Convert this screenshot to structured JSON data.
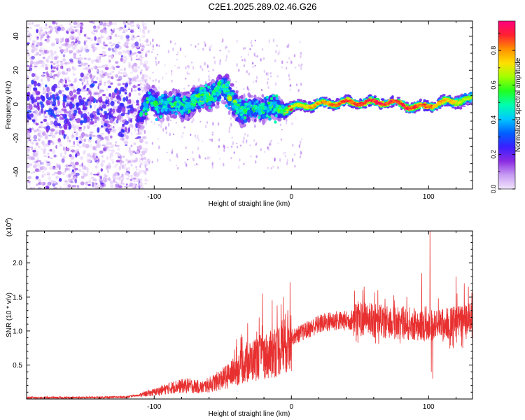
{
  "title": "C2E1.2025.289.02.46.G26",
  "colors": {
    "snr_line": "#e83030",
    "frame": "#000000",
    "spectro_low": "#e6d4f7",
    "spectro_mid": "#7b2ff0"
  },
  "chart_data": [
    {
      "type": "heatmap",
      "name": "spectrogram",
      "xlabel": "Height of straight line (km)",
      "ylabel": "Frequency (Hz)",
      "xlim": [
        -193,
        132
      ],
      "ylim": [
        -50,
        49
      ],
      "x_ticks": [
        -100,
        0,
        100
      ],
      "x_tick_labels": [
        "-100",
        "0",
        "100"
      ],
      "y_ticks": [
        -40,
        -20,
        0,
        20,
        40
      ],
      "y_tick_labels": [
        "-40",
        "-20",
        "0",
        "20",
        "40"
      ],
      "colorbar": {
        "label": "Normalized spectral amplitude",
        "range": [
          0.0,
          0.97
        ],
        "ticks": [
          0.0,
          0.2,
          0.4,
          0.6,
          0.8
        ],
        "tick_labels": [
          "0.0",
          "0.2",
          "0.4",
          "0.6",
          "0.8"
        ],
        "colors": [
          "#f2e4fc",
          "#c79cf3",
          "#8a2be2",
          "#3a1fff",
          "#0060ff",
          "#00c8ff",
          "#00ffb0",
          "#20ff20",
          "#a0ff00",
          "#ffe000",
          "#ff9000",
          "#ff2030",
          "#ff0080"
        ]
      },
      "features": {
        "noise_region_x": [
          -193,
          -112
        ],
        "band_x": [
          -112,
          132
        ],
        "band_center_freq": [
          [
            -112,
            -8
          ],
          [
            -105,
            1
          ],
          [
            -95,
            0
          ],
          [
            -80,
            -1
          ],
          [
            -65,
            3
          ],
          [
            -50,
            9
          ],
          [
            -45,
            4
          ],
          [
            -35,
            -5
          ],
          [
            -20,
            -2
          ],
          [
            -10,
            -3
          ],
          [
            0,
            -2
          ],
          [
            20,
            0
          ],
          [
            40,
            1
          ],
          [
            60,
            1
          ],
          [
            75,
            1
          ],
          [
            90,
            -2
          ],
          [
            100,
            -1
          ],
          [
            110,
            1
          ],
          [
            120,
            2
          ],
          [
            132,
            3
          ]
        ],
        "band_half_width": [
          [
            -112,
            10
          ],
          [
            -100,
            9
          ],
          [
            -80,
            8
          ],
          [
            -60,
            8
          ],
          [
            -45,
            10
          ],
          [
            -30,
            9
          ],
          [
            -15,
            8
          ],
          [
            -8,
            6
          ],
          [
            0,
            3
          ],
          [
            40,
            3
          ],
          [
            80,
            3
          ],
          [
            100,
            3
          ],
          [
            132,
            4
          ]
        ],
        "peak_amplitude": [
          [
            -112,
            0.3
          ],
          [
            -100,
            0.45
          ],
          [
            -75,
            0.5
          ],
          [
            -55,
            0.55
          ],
          [
            -40,
            0.5
          ],
          [
            -20,
            0.45
          ],
          [
            -8,
            0.5
          ],
          [
            0,
            0.7
          ],
          [
            20,
            0.8
          ],
          [
            40,
            0.88
          ],
          [
            60,
            0.92
          ],
          [
            80,
            0.9
          ],
          [
            100,
            0.85
          ],
          [
            132,
            0.65
          ]
        ]
      }
    },
    {
      "type": "line",
      "name": "snr",
      "xlabel": "Height of straight line (km)",
      "ylabel": "SNR (10 * v/v)",
      "y_multiplier_label": "(x10",
      "y_multiplier_exp": "4",
      "y_multiplier_close": ")",
      "xlim": [
        -193,
        132
      ],
      "ylim": [
        0,
        24700
      ],
      "x_ticks": [
        -100,
        0,
        100
      ],
      "x_tick_labels": [
        "-100",
        "0",
        "100"
      ],
      "y_ticks": [
        5000,
        10000,
        15000,
        20000
      ],
      "y_tick_labels": [
        "0.5",
        "1.0",
        "1.5",
        "2.0"
      ],
      "series": [
        {
          "name": "SNR",
          "trend": [
            [
              -193,
              200
            ],
            [
              -150,
              200
            ],
            [
              -120,
              300
            ],
            [
              -110,
              600
            ],
            [
              -100,
              1000
            ],
            [
              -85,
              1800
            ],
            [
              -75,
              2000
            ],
            [
              -65,
              1700
            ],
            [
              -55,
              2500
            ],
            [
              -45,
              3500
            ],
            [
              -35,
              5000
            ],
            [
              -25,
              6000
            ],
            [
              -15,
              6500
            ],
            [
              -8,
              7500
            ],
            [
              0,
              9000
            ],
            [
              10,
              10000
            ],
            [
              20,
              11000
            ],
            [
              30,
              11500
            ],
            [
              40,
              11500
            ],
            [
              50,
              11800
            ],
            [
              60,
              11500
            ],
            [
              70,
              11300
            ],
            [
              80,
              11200
            ],
            [
              90,
              11000
            ],
            [
              100,
              10800
            ],
            [
              110,
              11000
            ],
            [
              120,
              11300
            ],
            [
              132,
              11500
            ]
          ],
          "spikes": [
            [
              -21,
              15500
            ],
            [
              -14,
              14500
            ],
            [
              -6,
              15000
            ],
            [
              52,
              16000
            ],
            [
              53,
              16500
            ],
            [
              63,
              16000
            ],
            [
              75,
              14500
            ],
            [
              95,
              18500
            ],
            [
              101,
              24700
            ],
            [
              102,
              4000
            ],
            [
              103,
              3000
            ],
            [
              120,
              18000
            ],
            [
              126,
              17000
            ],
            [
              129,
              16500
            ]
          ]
        }
      ]
    }
  ]
}
